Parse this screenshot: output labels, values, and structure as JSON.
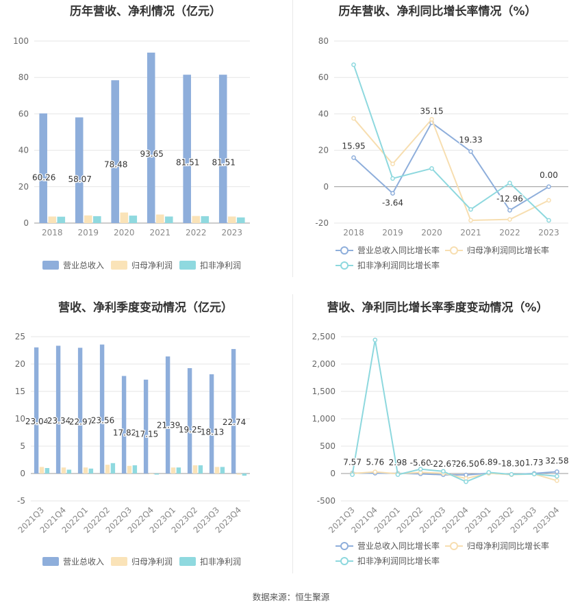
{
  "source": "数据来源：恒生聚源",
  "chart_data": [
    {
      "type": "bar",
      "title": "历年营收、净利情况（亿元）",
      "categories": [
        "2018",
        "2019",
        "2020",
        "2021",
        "2022",
        "2023"
      ],
      "ylim": [
        0,
        100
      ],
      "yticks": [
        "0",
        "20",
        "40",
        "60",
        "80",
        "100"
      ],
      "grid": true,
      "legend": "bottom",
      "series": [
        {
          "name": "营业总收入",
          "color": "#8eaedb",
          "values": [
            60.26,
            58.07,
            78.48,
            93.65,
            81.51,
            81.51
          ],
          "labels": [
            "60.26",
            "58.07",
            "78.48",
            "93.65",
            "81.51",
            "81.51"
          ]
        },
        {
          "name": "归母净利润",
          "color": "#fae3b8",
          "values": [
            3.6,
            4.2,
            5.8,
            4.7,
            3.9,
            3.6
          ]
        },
        {
          "name": "扣非净利润",
          "color": "#8fd9df",
          "values": [
            3.5,
            3.8,
            4.1,
            3.6,
            3.8,
            3.1
          ]
        }
      ]
    },
    {
      "type": "line",
      "title": "历年营收、净利同比增长率情况（%）",
      "categories": [
        "2018",
        "2019",
        "2020",
        "2021",
        "2022",
        "2023"
      ],
      "ylim": [
        -20,
        80
      ],
      "yticks": [
        "-20",
        "0",
        "20",
        "40",
        "60",
        "80"
      ],
      "grid": true,
      "legend": "bottom",
      "series": [
        {
          "name": "营业总收入同比增长率",
          "color": "#8eaedb",
          "values": [
            15.95,
            -3.64,
            35.15,
            19.33,
            -12.96,
            0.0
          ],
          "labels": [
            "15.95",
            "-3.64",
            "35.15",
            "19.33",
            "-12.96",
            "0.00"
          ]
        },
        {
          "name": "归母净利润同比增长率",
          "color": "#f7deb0",
          "values": [
            37.5,
            12.5,
            37.0,
            -18.5,
            -18.0,
            -7.5
          ]
        },
        {
          "name": "扣非净利润同比增长率",
          "color": "#8dd8de",
          "values": [
            67.0,
            4.5,
            10.0,
            -12.5,
            2.0,
            -18.5
          ]
        }
      ]
    },
    {
      "type": "bar",
      "title": "营收、净利季度变动情况（亿元）",
      "categories": [
        "2021Q3",
        "2021Q4",
        "2022Q1",
        "2022Q2",
        "2022Q3",
        "2022Q4",
        "2023Q1",
        "2023Q2",
        "2023Q3",
        "2023Q4"
      ],
      "ylim": [
        -5,
        25
      ],
      "yticks": [
        "-5",
        "0",
        "5",
        "10",
        "15",
        "20",
        "25"
      ],
      "grid": true,
      "legend": "bottom",
      "series": [
        {
          "name": "营业总收入",
          "color": "#8eaedb",
          "values": [
            23.04,
            23.34,
            22.97,
            23.56,
            17.82,
            17.15,
            21.39,
            19.25,
            18.13,
            22.74
          ],
          "labels": [
            "23.04",
            "23.34",
            "22.97",
            "23.56",
            "17.82",
            "17.15",
            "21.39",
            "19.25",
            "18.13",
            "22.74"
          ]
        },
        {
          "name": "归母净利润",
          "color": "#fae3b8",
          "values": [
            1.2,
            1.1,
            1.1,
            1.6,
            1.4,
            -0.1,
            1.1,
            1.5,
            1.2,
            -0.2
          ]
        },
        {
          "name": "扣非净利润",
          "color": "#8fd9df",
          "values": [
            1.0,
            0.7,
            0.9,
            1.9,
            1.5,
            -0.2,
            1.1,
            1.5,
            1.2,
            -0.4
          ]
        }
      ]
    },
    {
      "type": "line",
      "title": "营收、净利同比增长率季度变动情况（%）",
      "categories": [
        "2021Q3",
        "2021Q4",
        "2022Q1",
        "2022Q2",
        "2022Q3",
        "2022Q4",
        "2023Q1",
        "2023Q2",
        "2023Q3",
        "2023Q4"
      ],
      "ylim": [
        -500,
        2500
      ],
      "yticks": [
        "-500",
        "0",
        "500",
        "1,000",
        "1,500",
        "2,000",
        "2,500"
      ],
      "grid": true,
      "legend": "bottom",
      "series": [
        {
          "name": "营业总收入同比增长率",
          "color": "#8eaedb",
          "values": [
            7.57,
            5.76,
            2.98,
            -5.6,
            -22.67,
            -26.5,
            6.89,
            -18.3,
            1.73,
            32.58
          ],
          "labels": [
            "7.57",
            "5.76",
            "2.98",
            "-5.60",
            "-22.67",
            "-26.50",
            "6.89",
            "-18.30",
            "1.73",
            "32.58"
          ]
        },
        {
          "name": "归母净利润同比增长率",
          "color": "#f7deb0",
          "values": [
            0,
            30,
            -5,
            20,
            5,
            -90,
            5,
            -20,
            -10,
            -130
          ]
        },
        {
          "name": "扣非净利润同比增长率",
          "color": "#8dd8de",
          "values": [
            -20,
            2440,
            -20,
            80,
            40,
            -150,
            20,
            -15,
            -10,
            -50
          ]
        }
      ]
    }
  ]
}
